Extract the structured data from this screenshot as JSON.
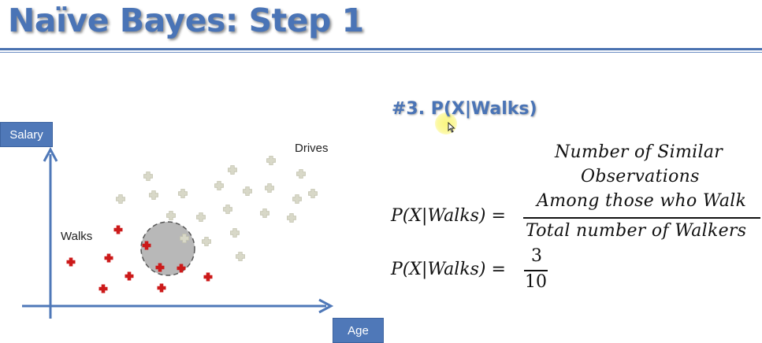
{
  "title": "Naïve Bayes: Step 1",
  "chart": {
    "y_axis_label": "Salary",
    "x_axis_label": "Age",
    "group_labels": {
      "drives": "Drives",
      "walks": "Walks"
    },
    "colors": {
      "walks_points": "#cc1a1a",
      "drives_points": "#d8d8c8",
      "axes": "#4f78b8",
      "circle_fill": "#b8b8b8"
    }
  },
  "formula": {
    "heading": "#3. P(X|Walks)",
    "numerator_line1": "Number of Similar",
    "numerator_line2": "Observations",
    "numerator_line3": "Among those who Walk",
    "lhs": "P(X|Walks) =",
    "denominator": "Total number of Walkers",
    "lhs2": "P(X|Walks) =",
    "result_numerator": "3",
    "result_denominator": "10"
  }
}
